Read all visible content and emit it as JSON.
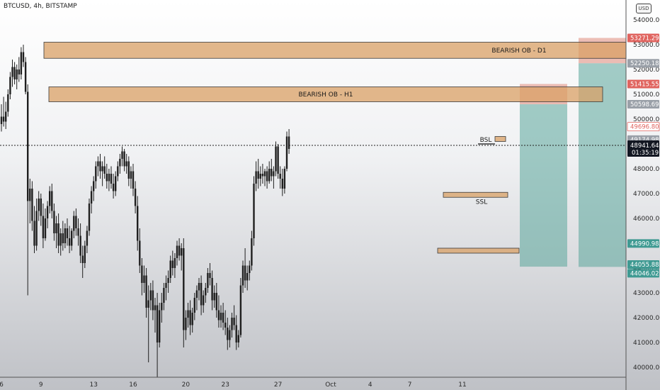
{
  "header": {
    "symbol_line": "BTCUSD, 4h, BITSTAMP"
  },
  "currency": "USD",
  "colors": {
    "candle": "#1f1f1f",
    "ob_fill": "#d9a066",
    "ob_stroke": "#3a3a3a",
    "green_zone": "#5aa59b",
    "red_zone": "#e08b7a",
    "red_badge": "#e0645f",
    "teal_badge": "#3f9a92",
    "gray_badge": "#9aa0a8",
    "dark_badge": "#131722"
  },
  "chart_data": {
    "type": "candlestick",
    "title": "BTCUSD, 4h, BITSTAMP",
    "ylim": [
      39600,
      54800
    ],
    "y_ticks": [
      40000,
      41000,
      42000,
      43000,
      44000,
      45000,
      46000,
      47000,
      48000,
      49000,
      50000,
      51000,
      52000,
      53000,
      54000
    ],
    "y_tick_labels": [
      "40000.00",
      "41000.00",
      "42000.00",
      "43000.00",
      "44000.00",
      "45000.00",
      "46000.00",
      "47000.00",
      "48000.00",
      "49000.00",
      "50000.00",
      "51000.00",
      "52000.00",
      "53000.00",
      "54000.00"
    ],
    "x_tick_labels": [
      {
        "label": "6",
        "bar": 0
      },
      {
        "label": "9",
        "bar": 18
      },
      {
        "label": "13",
        "bar": 42
      },
      {
        "label": "16",
        "bar": 60
      },
      {
        "label": "20",
        "bar": 84
      },
      {
        "label": "23",
        "bar": 102
      },
      {
        "label": "27",
        "bar": 126
      },
      {
        "label": "Oct",
        "bar": 150
      },
      {
        "label": "4",
        "bar": 168
      },
      {
        "label": "7",
        "bar": 186
      },
      {
        "label": "11",
        "bar": 210
      }
    ],
    "ohlc": [
      [
        49800,
        50600,
        49500,
        50100
      ],
      [
        50100,
        50900,
        49700,
        49900
      ],
      [
        49900,
        50700,
        49600,
        50300
      ],
      [
        50300,
        51200,
        50100,
        51000
      ],
      [
        51000,
        51900,
        50800,
        51700
      ],
      [
        51700,
        52400,
        51300,
        52100
      ],
      [
        52100,
        52300,
        51400,
        51600
      ],
      [
        51600,
        52200,
        51200,
        52000
      ],
      [
        52000,
        52500,
        51500,
        51800
      ],
      [
        51800,
        52900,
        51600,
        52700
      ],
      [
        52700,
        53000,
        52100,
        52300
      ],
      [
        52300,
        52500,
        51000,
        51100
      ],
      [
        51100,
        51400,
        42900,
        46700
      ],
      [
        46700,
        47600,
        45800,
        47200
      ],
      [
        47200,
        47500,
        45500,
        45900
      ],
      [
        45900,
        46500,
        44600,
        44900
      ],
      [
        44900,
        46800,
        44700,
        46300
      ],
      [
        46300,
        47100,
        45900,
        46800
      ],
      [
        46800,
        47000,
        45700,
        46100
      ],
      [
        46100,
        46600,
        44800,
        45200
      ],
      [
        45200,
        46400,
        45100,
        46000
      ],
      [
        46000,
        46700,
        45600,
        46500
      ],
      [
        46500,
        47300,
        46200,
        47100
      ],
      [
        47100,
        47400,
        46000,
        46300
      ],
      [
        46300,
        46600,
        45100,
        45400
      ],
      [
        45400,
        46100,
        44800,
        45800
      ],
      [
        45800,
        46200,
        44600,
        44900
      ],
      [
        44900,
        45600,
        44500,
        45400
      ],
      [
        45400,
        45900,
        44700,
        45000
      ],
      [
        45000,
        45800,
        44800,
        45600
      ],
      [
        45600,
        46000,
        44900,
        45200
      ],
      [
        45200,
        45700,
        44600,
        44900
      ],
      [
        44900,
        45600,
        44700,
        45500
      ],
      [
        45500,
        46300,
        45200,
        46100
      ],
      [
        46100,
        46400,
        45300,
        45600
      ],
      [
        45600,
        46000,
        44900,
        45300
      ],
      [
        45300,
        45800,
        44200,
        44500
      ],
      [
        44500,
        44900,
        43600,
        44200
      ],
      [
        44200,
        45100,
        44000,
        44900
      ],
      [
        44900,
        45700,
        44600,
        45500
      ],
      [
        45500,
        46800,
        45300,
        46600
      ],
      [
        46600,
        47300,
        46200,
        47100
      ],
      [
        47100,
        47700,
        46700,
        47500
      ],
      [
        47500,
        48300,
        47200,
        48100
      ],
      [
        48100,
        48500,
        47700,
        48300
      ],
      [
        48300,
        48600,
        47600,
        47900
      ],
      [
        47900,
        48300,
        47300,
        48100
      ],
      [
        48100,
        48500,
        47600,
        47800
      ],
      [
        47800,
        48200,
        47200,
        47500
      ],
      [
        47500,
        48000,
        47100,
        47800
      ],
      [
        47800,
        48100,
        47200,
        47400
      ],
      [
        47400,
        47800,
        46800,
        47100
      ],
      [
        47100,
        47900,
        46900,
        47700
      ],
      [
        47700,
        48300,
        47500,
        48100
      ],
      [
        48100,
        48600,
        47800,
        48400
      ],
      [
        48400,
        48900,
        48100,
        48700
      ],
      [
        48700,
        48800,
        47900,
        48100
      ],
      [
        48100,
        48600,
        47800,
        48300
      ],
      [
        48300,
        48500,
        47300,
        47600
      ],
      [
        47600,
        48100,
        47200,
        47900
      ],
      [
        47900,
        48200,
        46900,
        47200
      ],
      [
        47200,
        47500,
        46200,
        46500
      ],
      [
        46500,
        46900,
        44700,
        45100
      ],
      [
        45100,
        45600,
        43800,
        44100
      ],
      [
        44100,
        44400,
        42900,
        43400
      ],
      [
        43400,
        44100,
        43000,
        43700
      ],
      [
        43700,
        44000,
        42000,
        42400
      ],
      [
        42400,
        43300,
        40200,
        42700
      ],
      [
        42700,
        43400,
        42300,
        43100
      ],
      [
        43100,
        43500,
        41900,
        42300
      ],
      [
        42300,
        42800,
        41400,
        42500
      ],
      [
        42500,
        43000,
        39600,
        41000
      ],
      [
        41000,
        42600,
        40800,
        42300
      ],
      [
        42300,
        43000,
        41800,
        42600
      ],
      [
        42600,
        43400,
        42300,
        43200
      ],
      [
        43200,
        43700,
        42700,
        43400
      ],
      [
        43400,
        43900,
        43000,
        43600
      ],
      [
        43600,
        44500,
        43400,
        44300
      ],
      [
        44300,
        44700,
        43700,
        44000
      ],
      [
        44000,
        44600,
        43600,
        44400
      ],
      [
        44400,
        45100,
        44100,
        44900
      ],
      [
        44900,
        45200,
        44300,
        44500
      ],
      [
        44500,
        45000,
        43900,
        44800
      ],
      [
        44800,
        45200,
        40800,
        41500
      ],
      [
        41500,
        42300,
        41100,
        42000
      ],
      [
        42000,
        42600,
        41600,
        42300
      ],
      [
        42300,
        42700,
        41300,
        41700
      ],
      [
        41700,
        42400,
        41400,
        42200
      ],
      [
        42200,
        43000,
        41900,
        42800
      ],
      [
        42800,
        43300,
        42300,
        43100
      ],
      [
        43100,
        43600,
        42700,
        43400
      ],
      [
        43400,
        43700,
        42100,
        42500
      ],
      [
        42500,
        43100,
        42200,
        42900
      ],
      [
        42900,
        43400,
        42600,
        43200
      ],
      [
        43200,
        44000,
        43000,
        43800
      ],
      [
        43800,
        44200,
        43300,
        43600
      ],
      [
        43600,
        43900,
        42300,
        42700
      ],
      [
        42700,
        43300,
        42400,
        43000
      ],
      [
        43000,
        43400,
        42000,
        42300
      ],
      [
        42300,
        42900,
        41600,
        41900
      ],
      [
        41900,
        42500,
        41600,
        42200
      ],
      [
        42200,
        42600,
        41500,
        41800
      ],
      [
        41800,
        42300,
        41300,
        41600
      ],
      [
        41600,
        42000,
        40700,
        41100
      ],
      [
        41100,
        41700,
        40800,
        41500
      ],
      [
        41500,
        42200,
        41200,
        42000
      ],
      [
        42000,
        42500,
        41500,
        41700
      ],
      [
        41700,
        42100,
        40700,
        41000
      ],
      [
        41000,
        41500,
        40800,
        41300
      ],
      [
        41300,
        43600,
        41200,
        43300
      ],
      [
        43300,
        44300,
        43000,
        44100
      ],
      [
        44100,
        44800,
        43200,
        43500
      ],
      [
        43500,
        44100,
        43100,
        43800
      ],
      [
        43800,
        44300,
        43500,
        44100
      ],
      [
        44100,
        45500,
        43900,
        45200
      ],
      [
        45200,
        47700,
        44900,
        47400
      ],
      [
        47400,
        48300,
        47100,
        47900
      ],
      [
        47900,
        48400,
        47200,
        47600
      ],
      [
        47600,
        48100,
        47300,
        47800
      ],
      [
        47800,
        48200,
        47400,
        47700
      ],
      [
        47700,
        48000,
        47300,
        47900
      ],
      [
        47900,
        48100,
        47200,
        47500
      ],
      [
        47500,
        48300,
        47400,
        48000
      ],
      [
        48000,
        48400,
        47500,
        47700
      ],
      [
        47700,
        48100,
        47200,
        47900
      ],
      [
        47900,
        49100,
        47700,
        48900
      ],
      [
        48900,
        49000,
        47600,
        47800
      ],
      [
        47800,
        48100,
        47200,
        47600
      ],
      [
        47600,
        48000,
        46900,
        47200
      ],
      [
        47200,
        48100,
        47000,
        48000
      ],
      [
        48000,
        49500,
        47900,
        49300
      ],
      [
        49300,
        49600,
        48600,
        48800
      ]
    ],
    "zones": [
      {
        "label": "BEARISH OB - D1",
        "top": 53100,
        "bottom": 52450
      },
      {
        "label": "BEARISH OB - H1",
        "top": 51300,
        "bottom": 50700
      }
    ],
    "levels": {
      "BSL": 49000,
      "SSL": 47000,
      "demand_zone": [
        44800,
        44600
      ]
    },
    "positions": [
      {
        "entry": 50598.69,
        "stop": 51415.55,
        "target": 44055.88
      },
      {
        "entry": 52250.18,
        "stop": 53271.29,
        "target": 44046.02
      }
    ],
    "current_price": 48941.64,
    "countdown": "01:35:19",
    "price_badges": [
      {
        "text": "53271.29",
        "kind": "red"
      },
      {
        "text": "52250.18",
        "kind": "gray"
      },
      {
        "text": "51415.55",
        "kind": "red"
      },
      {
        "text": "50598.69",
        "kind": "gray"
      },
      {
        "text": "49696.80",
        "kind": "red_outline"
      },
      {
        "text": "49174.98",
        "kind": "gray"
      },
      {
        "text": "44990.98",
        "kind": "teal"
      },
      {
        "text": "44055.88",
        "kind": "teal"
      },
      {
        "text": "44046.02",
        "kind": "teal"
      }
    ]
  }
}
